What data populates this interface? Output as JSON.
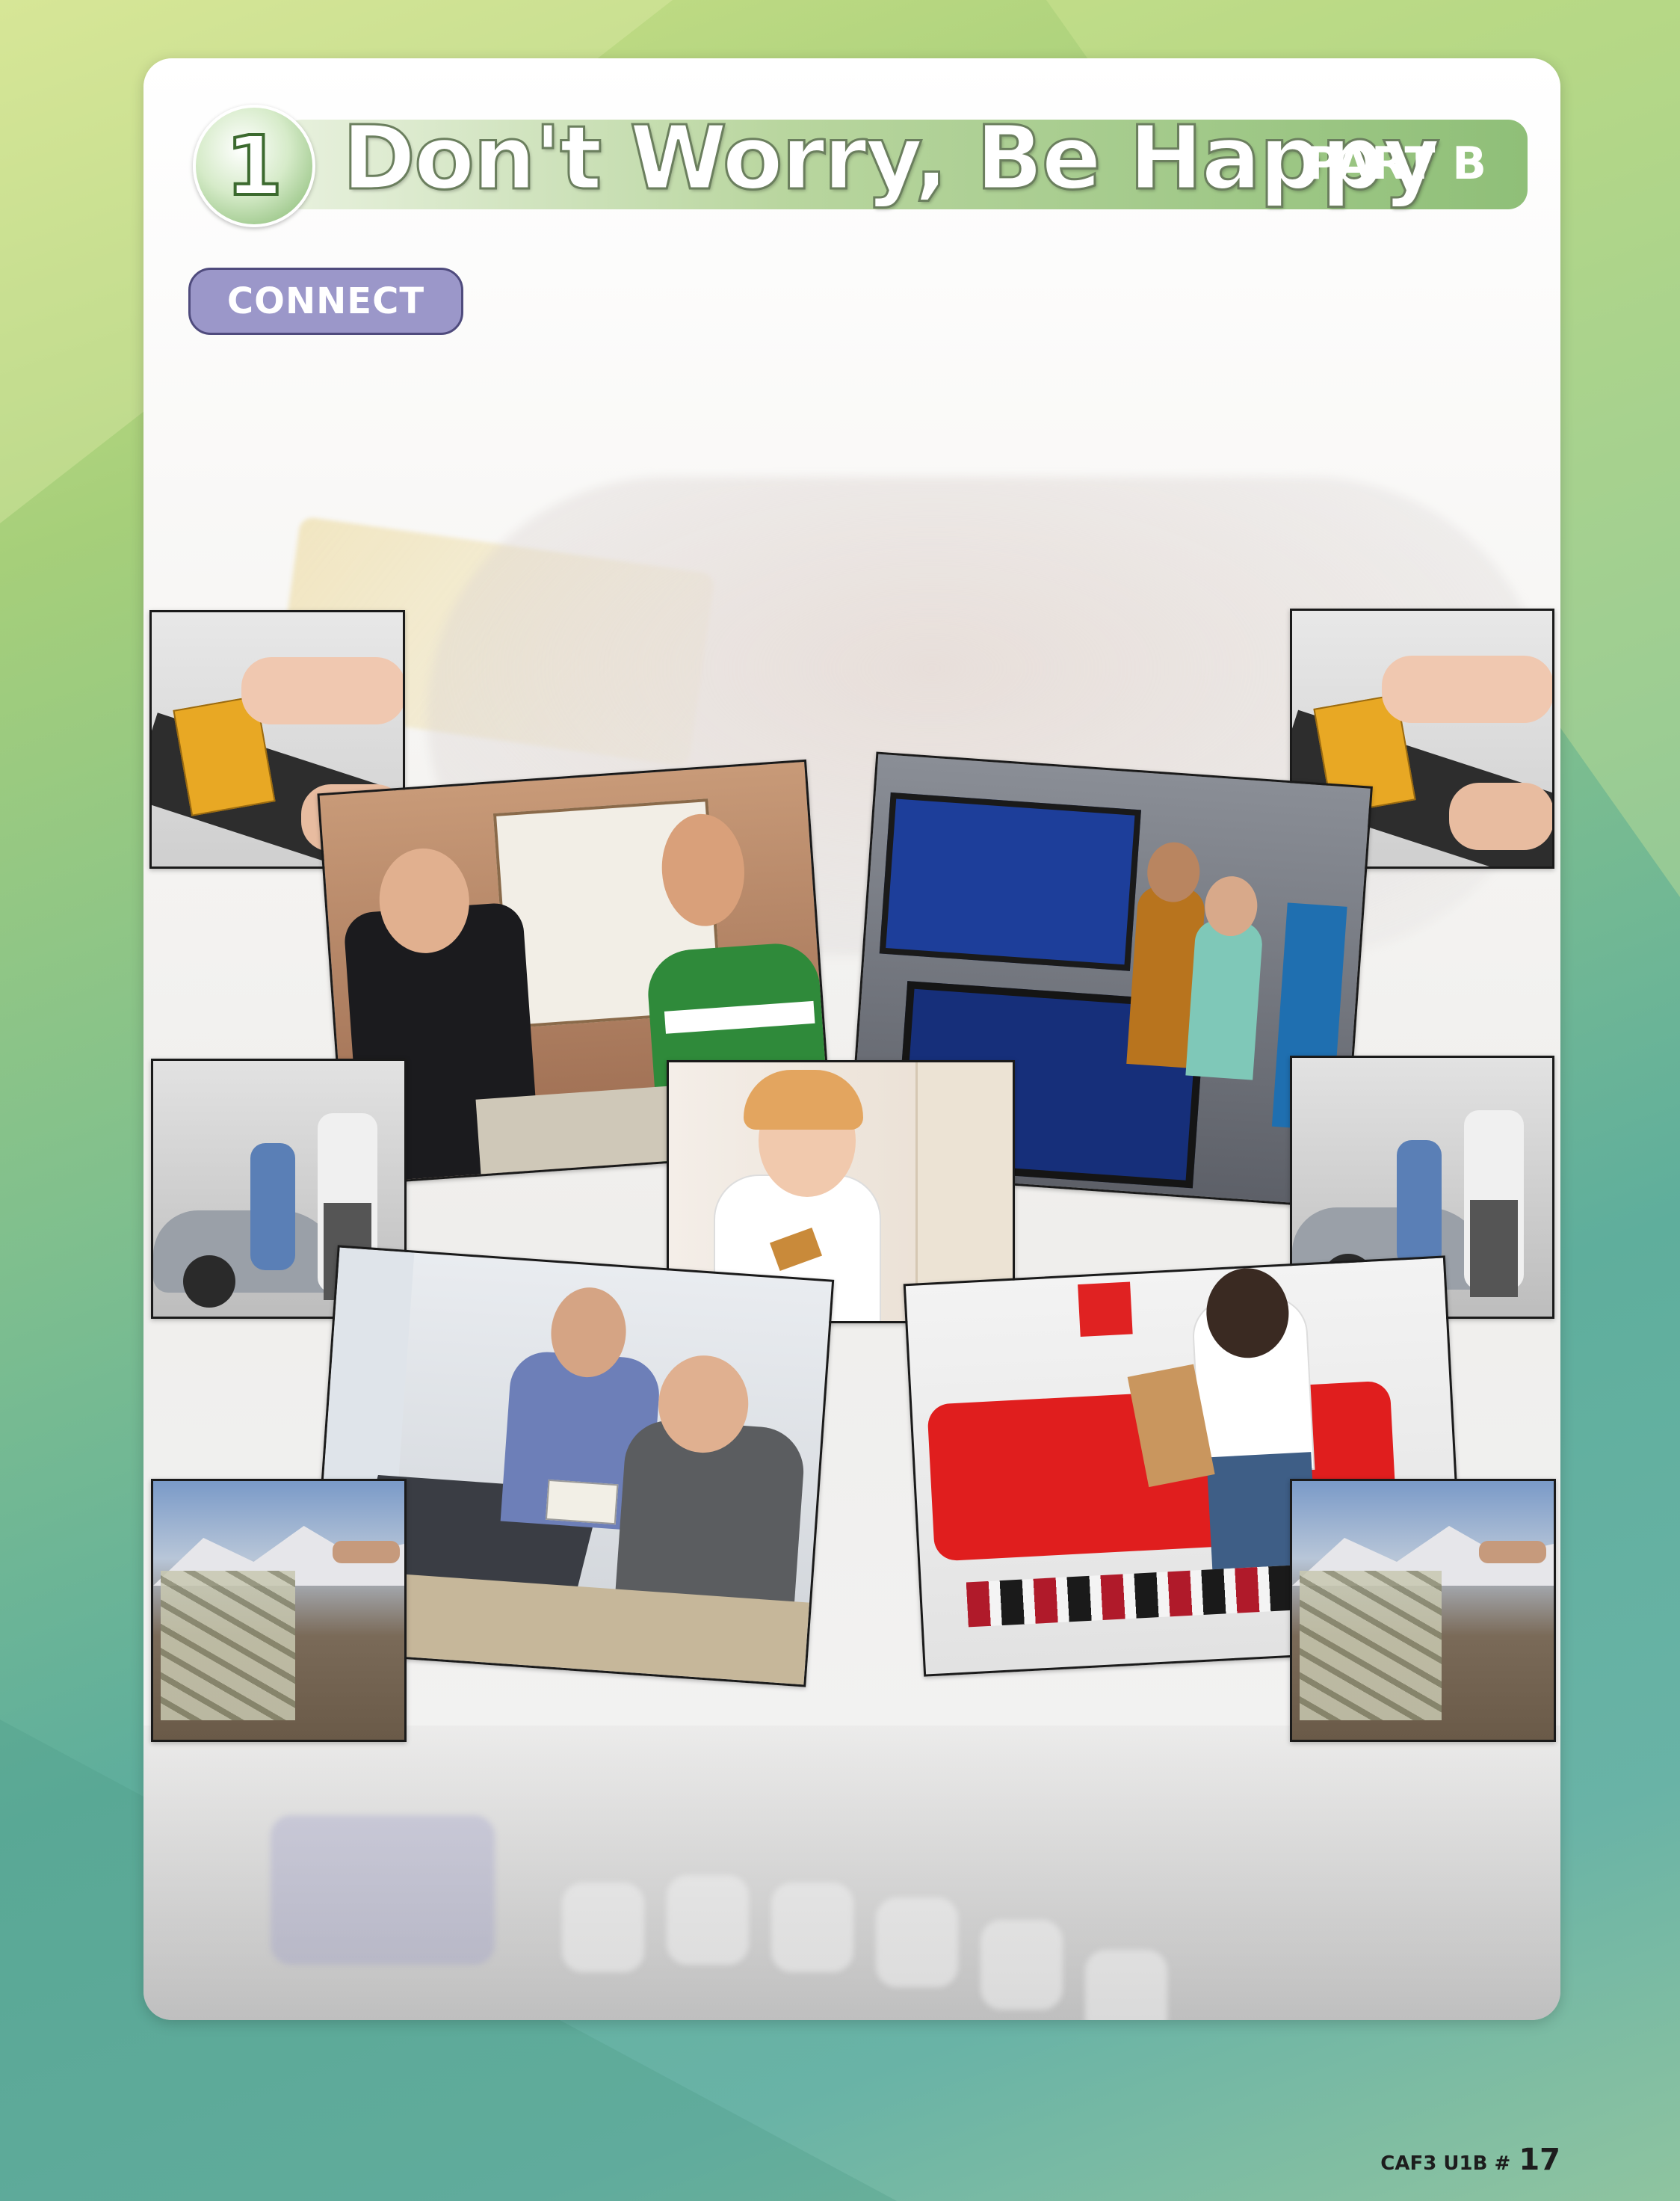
{
  "title": {
    "unit_number": "1",
    "text": "Don't Worry, Be Happy",
    "part": "PART B"
  },
  "section_label": "CONNECT",
  "footer": {
    "code": "CAF3 U1B #",
    "page_number": "17"
  },
  "photos": [
    "card-swipe-left",
    "watch-salesman",
    "tv-store-couple",
    "card-swipe-right",
    "car-dealer-left",
    "girl-with-card",
    "car-dealer-right",
    "online-shopping-boy",
    "shopper-on-red-sofa",
    "money-mountain-left",
    "money-mountain-right"
  ]
}
